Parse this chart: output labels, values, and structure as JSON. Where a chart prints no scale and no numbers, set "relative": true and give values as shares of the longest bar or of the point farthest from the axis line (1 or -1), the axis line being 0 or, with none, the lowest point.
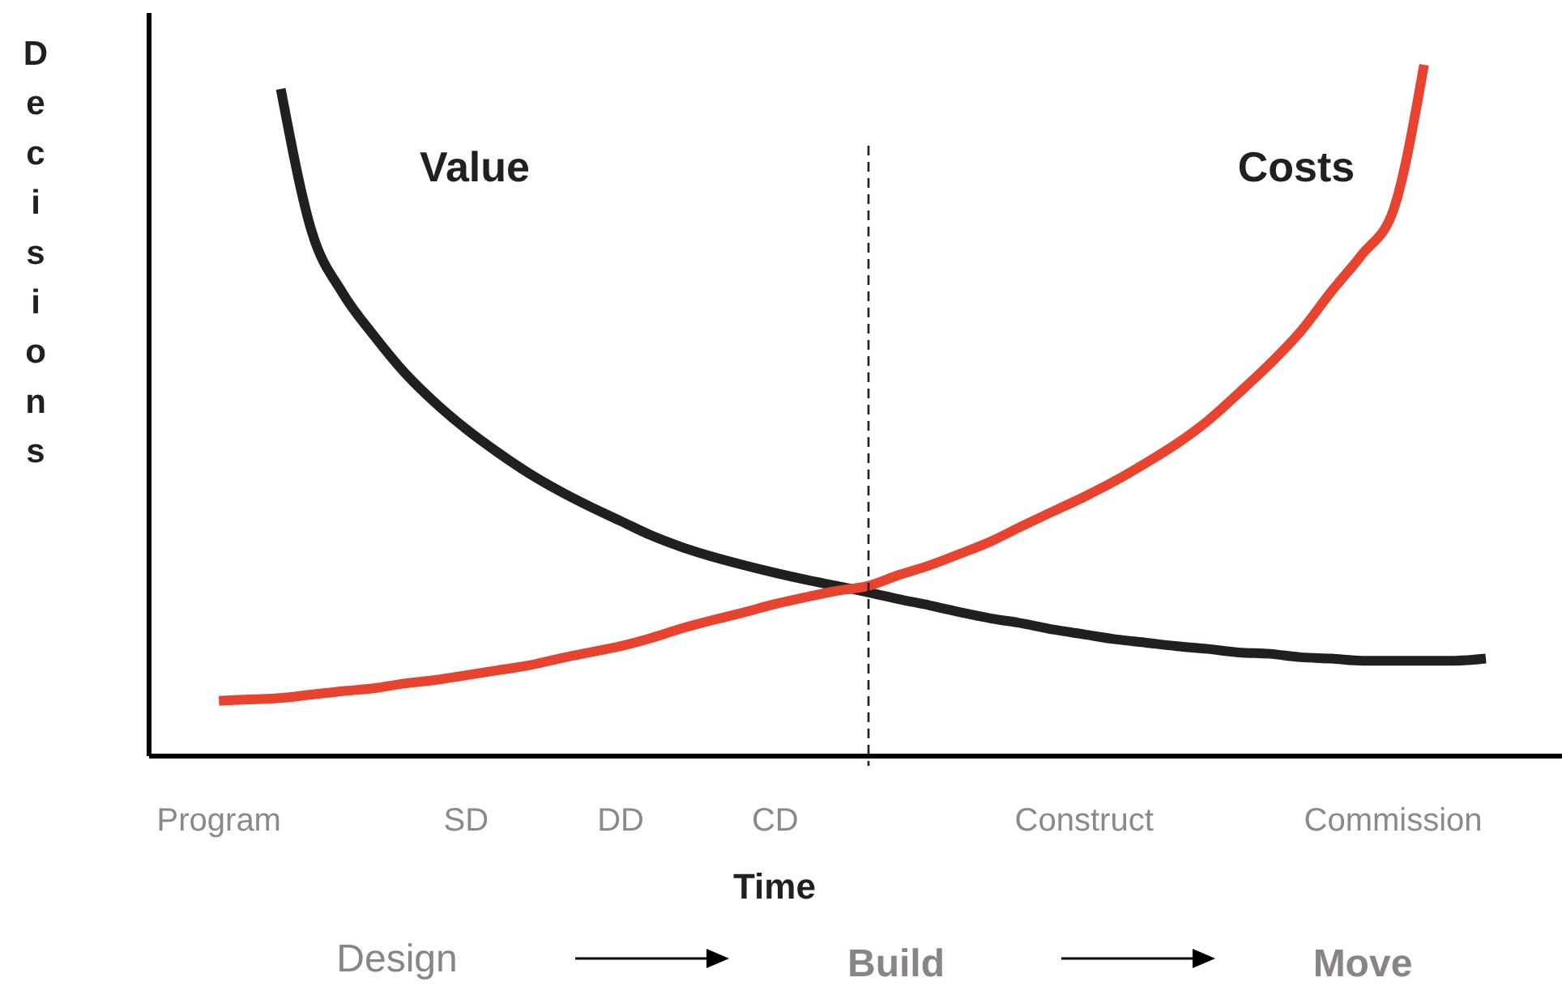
{
  "chart_data": {
    "type": "line",
    "relative": true,
    "ylabel": "Decisions",
    "xlabel": "Time",
    "categories": [
      null,
      null,
      "Program",
      null,
      null,
      null,
      null,
      null,
      null,
      null,
      "SD",
      null,
      null,
      null,
      null,
      "DD",
      null,
      null,
      null,
      null,
      "CD",
      null,
      null,
      null,
      null,
      null,
      null,
      null,
      null,
      null,
      "Construct",
      null,
      null,
      null,
      null,
      null,
      null,
      null,
      null,
      null,
      "Commission",
      null,
      null,
      null
    ],
    "tick_labels": "x",
    "grid": false,
    "marker": "none",
    "line_style": "solid",
    "series": [
      {
        "name": "Value",
        "color": "#231f20",
        "values": [
          null,
          null,
          null,
          null,
          0.965,
          0.759,
          0.67,
          0.609,
          0.555,
          0.511,
          0.473,
          0.44,
          0.41,
          0.384,
          0.361,
          0.34,
          0.319,
          0.302,
          0.288,
          0.276,
          0.265,
          0.255,
          0.246,
          0.237,
          0.227,
          0.218,
          0.208,
          0.199,
          0.192,
          0.183,
          0.176,
          0.169,
          0.164,
          0.159,
          0.155,
          0.15,
          0.148,
          0.143,
          0.141,
          0.138,
          0.138,
          0.138,
          0.138,
          0.141
        ]
      },
      {
        "name": "Costs",
        "color": "#e8432e",
        "values": [
          null,
          null,
          0.08,
          0.082,
          0.084,
          0.089,
          0.094,
          0.098,
          0.105,
          0.11,
          0.117,
          0.124,
          0.131,
          0.141,
          0.15,
          0.159,
          0.171,
          0.185,
          0.197,
          0.208,
          0.22,
          0.23,
          0.239,
          0.246,
          0.262,
          0.276,
          0.293,
          0.311,
          0.333,
          0.354,
          0.375,
          0.398,
          0.424,
          0.452,
          0.485,
          0.525,
          0.567,
          0.614,
          0.672,
          0.726,
          0.789,
          1,
          null,
          null
        ]
      }
    ],
    "annotations": [
      "Design",
      "Build",
      "Move"
    ]
  }
}
